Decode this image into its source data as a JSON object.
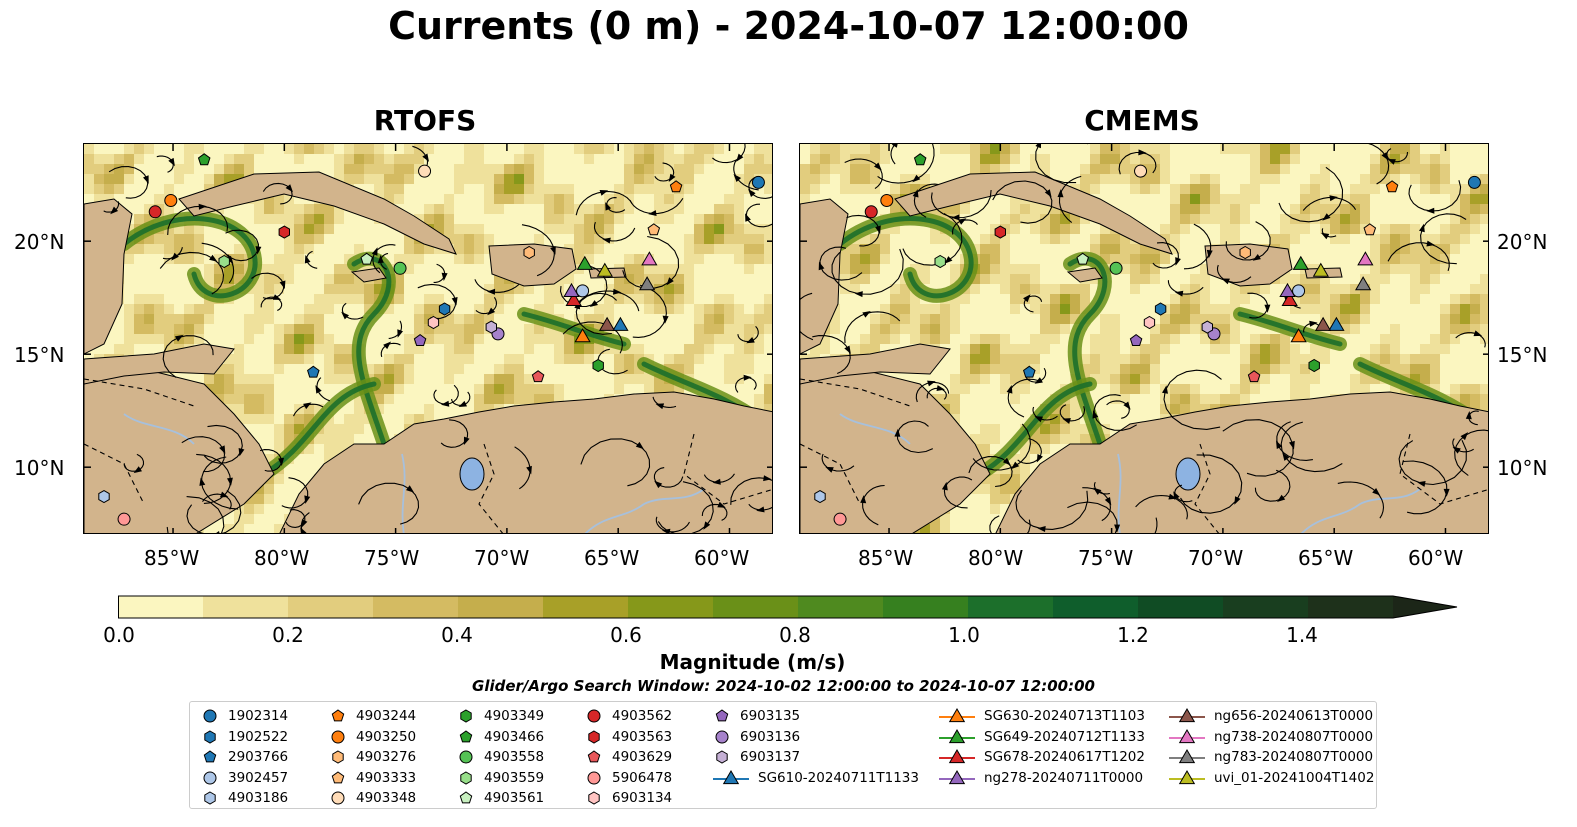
{
  "title": "Currents (0 m) - 2024-10-07 12:00:00",
  "panels": [
    {
      "title": "RTOFS"
    },
    {
      "title": "CMEMS"
    }
  ],
  "axes": {
    "lon_labels": [
      "85°W",
      "80°W",
      "75°W",
      "70°W",
      "65°W",
      "60°W"
    ],
    "lat_labels": [
      "20°N",
      "15°N",
      "10°N"
    ],
    "lon_range": [
      -89,
      -58
    ],
    "lat_range": [
      7,
      24.3
    ]
  },
  "colorbar": {
    "label": "Magnitude (m/s)",
    "ticks": [
      "0.0",
      "0.2",
      "0.4",
      "0.6",
      "0.8",
      "1.0",
      "1.2",
      "1.4"
    ],
    "min": 0.0,
    "max": 1.5,
    "extend": "max",
    "colors": [
      "#fbf6c0",
      "#efe19c",
      "#e2cd7e",
      "#d4bb62",
      "#c5ae4c",
      "#a8a028",
      "#86981a",
      "#6a9018",
      "#4f8a1f",
      "#36801f",
      "#1c6f2b",
      "#0f5e2c",
      "#104c24",
      "#193e1f",
      "#1e311b",
      "#1c2618"
    ]
  },
  "search_window": "Glider/Argo Search Window: 2024-10-02 12:00:00 to 2024-10-07 12:00:00",
  "colors": {
    "land": "#d2b48c",
    "lake": "#8db3e2",
    "river": "#a7c0dc"
  },
  "legend": {
    "items": [
      {
        "label": "1902314",
        "marker": "circle",
        "color": "#1f77b4"
      },
      {
        "label": "1902522",
        "marker": "hexagon",
        "color": "#1f77b4"
      },
      {
        "label": "2903766",
        "marker": "pentagon",
        "color": "#1f77b4"
      },
      {
        "label": "3902457",
        "marker": "circle",
        "color": "#aec7e8"
      },
      {
        "label": "4903186",
        "marker": "hexagon",
        "color": "#aec7e8"
      },
      {
        "label": "4903244",
        "marker": "pentagon",
        "color": "#ff7f0e"
      },
      {
        "label": "4903250",
        "marker": "circle",
        "color": "#ff7f0e"
      },
      {
        "label": "4903276",
        "marker": "hexagon",
        "color": "#ffbb78"
      },
      {
        "label": "4903333",
        "marker": "pentagon",
        "color": "#ffbb78"
      },
      {
        "label": "4903348",
        "marker": "circle",
        "color": "#ffdcb8"
      },
      {
        "label": "4903349",
        "marker": "hexagon",
        "color": "#2ca02c"
      },
      {
        "label": "4903466",
        "marker": "pentagon",
        "color": "#2ca02c"
      },
      {
        "label": "4903558",
        "marker": "circle",
        "color": "#55c255"
      },
      {
        "label": "4903559",
        "marker": "hexagon",
        "color": "#98df8a"
      },
      {
        "label": "4903561",
        "marker": "pentagon",
        "color": "#c8f0c0"
      },
      {
        "label": "4903562",
        "marker": "circle",
        "color": "#d62728"
      },
      {
        "label": "4903563",
        "marker": "hexagon",
        "color": "#d62728"
      },
      {
        "label": "4903629",
        "marker": "pentagon",
        "color": "#e8575a"
      },
      {
        "label": "5906478",
        "marker": "circle",
        "color": "#ff9896"
      },
      {
        "label": "6903134",
        "marker": "hexagon",
        "color": "#ffc4c2"
      },
      {
        "label": "6903135",
        "marker": "pentagon",
        "color": "#9467bd"
      },
      {
        "label": "6903136",
        "marker": "circle",
        "color": "#a682cb"
      },
      {
        "label": "6903137",
        "marker": "hexagon",
        "color": "#c5b0d5"
      },
      {
        "label": "SG610-20240711T1133",
        "marker": "triangle",
        "color": "#1f77b4"
      },
      {
        "label": "SG630-20240713T1103",
        "marker": "triangle",
        "color": "#ff7f0e"
      },
      {
        "label": "SG649-20240712T1133",
        "marker": "triangle",
        "color": "#2ca02c"
      },
      {
        "label": "SG678-20240617T1202",
        "marker": "triangle",
        "color": "#d62728"
      },
      {
        "label": "ng278-20240711T0000",
        "marker": "triangle",
        "color": "#9467bd"
      },
      {
        "label": "ng656-20240613T0000",
        "marker": "triangle",
        "color": "#8c564b"
      },
      {
        "label": "ng738-20240807T0000",
        "marker": "triangle",
        "color": "#e377c2"
      },
      {
        "label": "ng783-20240807T0000",
        "marker": "triangle",
        "color": "#7f7f7f"
      },
      {
        "label": "uvi_01-20241004T1402",
        "marker": "triangle",
        "color": "#bcbd22"
      }
    ]
  },
  "floats": [
    {
      "id": "1902314",
      "lon": -58.7,
      "lat": 22.6
    },
    {
      "id": "1902522",
      "lon": -72.8,
      "lat": 17.0
    },
    {
      "id": "2903766",
      "lon": -78.7,
      "lat": 14.2
    },
    {
      "id": "3902457",
      "lon": -66.6,
      "lat": 17.8
    },
    {
      "id": "4903186",
      "lon": -88.1,
      "lat": 8.7
    },
    {
      "id": "4903244",
      "lon": -62.4,
      "lat": 22.4
    },
    {
      "id": "4903250",
      "lon": -85.1,
      "lat": 21.8
    },
    {
      "id": "4903276",
      "lon": -69.0,
      "lat": 19.5
    },
    {
      "id": "4903333",
      "lon": -63.4,
      "lat": 20.5
    },
    {
      "id": "4903348",
      "lon": -73.7,
      "lat": 23.1
    },
    {
      "id": "4903349",
      "lon": -65.9,
      "lat": 14.5
    },
    {
      "id": "4903466",
      "lon": -83.6,
      "lat": 23.6
    },
    {
      "id": "4903558",
      "lon": -74.8,
      "lat": 18.8
    },
    {
      "id": "4903559",
      "lon": -82.7,
      "lat": 19.1
    },
    {
      "id": "4903561",
      "lon": -76.3,
      "lat": 19.2
    },
    {
      "id": "4903562",
      "lon": -85.8,
      "lat": 21.3
    },
    {
      "id": "4903563",
      "lon": -80.0,
      "lat": 20.4
    },
    {
      "id": "4903629",
      "lon": -68.6,
      "lat": 14.0
    },
    {
      "id": "5906478",
      "lon": -87.2,
      "lat": 7.7
    },
    {
      "id": "6903134",
      "lon": -73.3,
      "lat": 16.4
    },
    {
      "id": "6903135",
      "lon": -73.9,
      "lat": 15.6
    },
    {
      "id": "6903136",
      "lon": -70.4,
      "lat": 15.9
    },
    {
      "id": "6903137",
      "lon": -70.7,
      "lat": 16.2
    }
  ],
  "gliders": [
    {
      "id": "SG610-20240711T1133",
      "lon": -64.9,
      "lat": 16.3
    },
    {
      "id": "SG630-20240713T1103",
      "lon": -66.6,
      "lat": 15.8
    },
    {
      "id": "SG649-20240712T1133",
      "lon": -66.5,
      "lat": 19.0
    },
    {
      "id": "SG678-20240617T1202",
      "lon": -67.0,
      "lat": 17.4
    },
    {
      "id": "ng278-20240711T0000",
      "lon": -67.1,
      "lat": 17.8
    },
    {
      "id": "ng656-20240613T0000",
      "lon": -65.5,
      "lat": 16.3
    },
    {
      "id": "ng738-20240807T0000",
      "lon": -63.6,
      "lat": 19.2
    },
    {
      "id": "ng783-20240807T0000",
      "lon": -63.7,
      "lat": 18.1
    },
    {
      "id": "uvi_01-20241004T1402",
      "lon": -65.6,
      "lat": 18.7
    }
  ]
}
